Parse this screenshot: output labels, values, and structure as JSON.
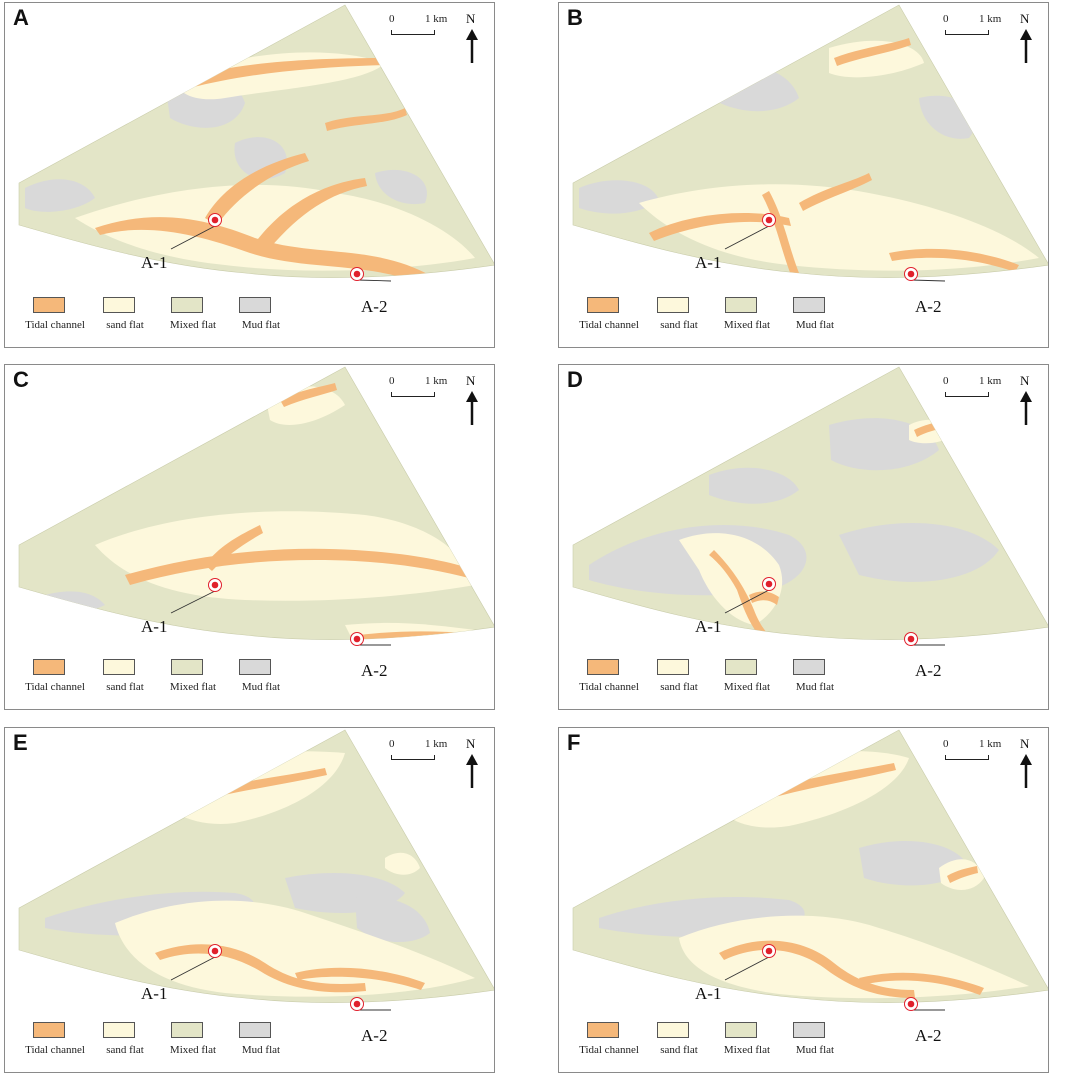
{
  "panels": [
    {
      "label": "A"
    },
    {
      "label": "B"
    },
    {
      "label": "C"
    },
    {
      "label": "D"
    },
    {
      "label": "E"
    },
    {
      "label": "F"
    }
  ],
  "scale": {
    "zero": "0",
    "one": "1 km"
  },
  "north": "N",
  "wells": {
    "a1": "A-1",
    "a2": "A-2"
  },
  "legend": {
    "tidal_channel": "Tidal channel",
    "sand_flat": "sand  flat",
    "mixed_flat": "Mixed  flat",
    "mud_flat": "Mud  flat"
  },
  "colors": {
    "tidal_channel": "#f5b87a",
    "sand_flat": "#fdf8dc",
    "mixed_flat": "#e3e5c7",
    "mud_flat": "#d9d9d9",
    "well_marker": "#e0202c"
  }
}
